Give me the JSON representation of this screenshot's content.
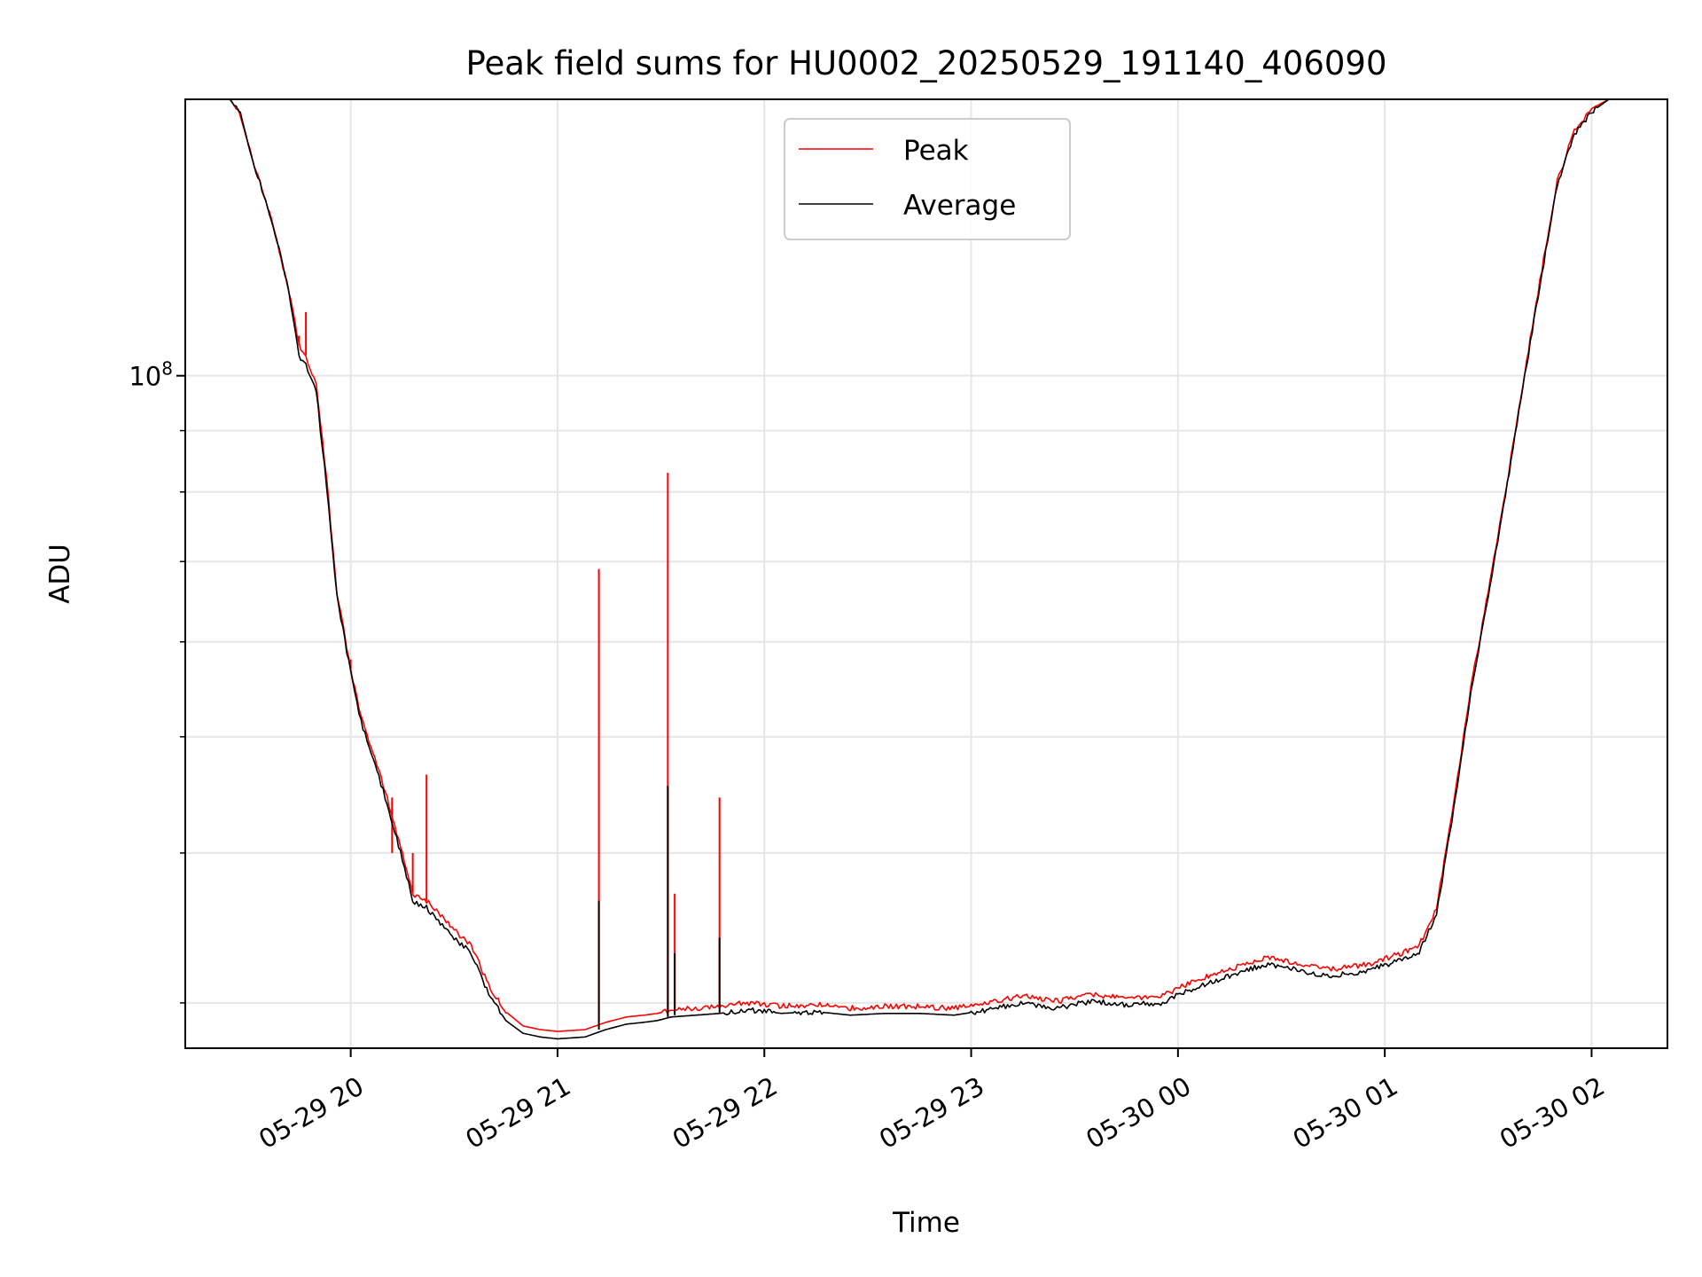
{
  "chart_data": {
    "type": "line",
    "title": "Peak field sums for HU0002_20250529_191140_406090",
    "xlabel": "Time",
    "ylabel": "ADU",
    "yscale": "log",
    "grid": true,
    "legend_position": "top-center",
    "xlim": [
      "2025-05-29 19:12",
      "2025-05-30 02:22"
    ],
    "ylim": [
      27500000,
      170000000
    ],
    "x_ticks": [
      {
        "value": "2025-05-29 20:00",
        "label": "05-29 20"
      },
      {
        "value": "2025-05-29 21:00",
        "label": "05-29 21"
      },
      {
        "value": "2025-05-29 22:00",
        "label": "05-29 22"
      },
      {
        "value": "2025-05-29 23:00",
        "label": "05-29 23"
      },
      {
        "value": "2025-05-30 00:00",
        "label": "05-30 00"
      },
      {
        "value": "2025-05-30 01:00",
        "label": "05-30 01"
      },
      {
        "value": "2025-05-30 02:00",
        "label": "05-30 02"
      }
    ],
    "y_ticks": [
      {
        "value": 100000000,
        "base": "10",
        "exp": "8"
      }
    ],
    "y_minor_ticks": [
      30000000,
      40000000,
      50000000,
      60000000,
      70000000,
      80000000,
      90000000
    ],
    "series": [
      {
        "name": "Peak",
        "color": "#ff0000",
        "x": [
          "2025-05-29 19:12",
          "2025-05-29 19:25",
          "2025-05-29 19:28",
          "2025-05-29 19:32",
          "2025-05-29 19:37",
          "2025-05-29 19:42",
          "2025-05-29 19:45",
          "2025-05-29 19:47",
          "2025-05-29 19:50",
          "2025-05-29 19:53",
          "2025-05-29 19:56",
          "2025-05-29 20:00",
          "2025-05-29 20:03",
          "2025-05-29 20:07",
          "2025-05-29 20:10",
          "2025-05-29 20:15",
          "2025-05-29 20:18",
          "2025-05-29 20:22",
          "2025-05-29 20:26",
          "2025-05-29 20:30",
          "2025-05-29 20:35",
          "2025-05-29 20:40",
          "2025-05-29 20:45",
          "2025-05-29 20:50",
          "2025-05-29 20:55",
          "2025-05-29 21:00",
          "2025-05-29 21:08",
          "2025-05-29 21:14",
          "2025-05-29 21:20",
          "2025-05-29 21:25",
          "2025-05-29 21:29",
          "2025-05-29 21:33",
          "2025-05-29 21:40",
          "2025-05-29 21:47",
          "2025-05-29 21:55",
          "2025-05-29 22:05",
          "2025-05-29 22:15",
          "2025-05-29 22:25",
          "2025-05-29 22:35",
          "2025-05-29 22:45",
          "2025-05-29 22:55",
          "2025-05-29 23:05",
          "2025-05-29 23:15",
          "2025-05-29 23:25",
          "2025-05-29 23:35",
          "2025-05-29 23:45",
          "2025-05-29 23:55",
          "2025-05-30 00:05",
          "2025-05-30 00:15",
          "2025-05-30 00:25",
          "2025-05-30 00:30",
          "2025-05-30 00:37",
          "2025-05-30 00:45",
          "2025-05-30 00:55",
          "2025-05-30 01:05",
          "2025-05-30 01:10",
          "2025-05-30 01:15",
          "2025-05-30 01:20",
          "2025-05-30 01:25",
          "2025-05-30 01:30",
          "2025-05-30 01:35",
          "2025-05-30 01:40",
          "2025-05-30 01:45",
          "2025-05-30 01:50",
          "2025-05-30 01:55",
          "2025-05-30 02:00",
          "2025-05-30 02:05",
          "2025-05-30 02:10",
          "2025-05-30 02:22"
        ],
        "y": [
          170000000,
          170000000,
          165000000,
          150000000,
          135000000,
          118000000,
          106000000,
          104000000,
          98000000,
          82000000,
          66000000,
          57000000,
          52000000,
          48000000,
          45000000,
          40000000,
          37000000,
          36500000,
          35500000,
          34500000,
          33500000,
          31000000,
          29500000,
          28700000,
          28500000,
          28400000,
          28500000,
          28900000,
          29200000,
          29300000,
          29400000,
          29600000,
          29700000,
          29800000,
          30000000,
          29800000,
          29900000,
          29700000,
          29800000,
          29800000,
          29700000,
          30000000,
          30400000,
          30100000,
          30500000,
          30300000,
          30400000,
          31300000,
          32000000,
          32700000,
          32600000,
          32200000,
          32000000,
          32300000,
          33000000,
          33500000,
          36000000,
          44000000,
          55000000,
          66000000,
          80000000,
          98000000,
          120000000,
          145000000,
          160000000,
          167000000,
          170000000,
          170000000,
          170000000
        ],
        "spikes": [
          {
            "x": "2025-05-29 19:45",
            "y": 108000000
          },
          {
            "x": "2025-05-29 19:47",
            "y": 113000000
          },
          {
            "x": "2025-05-29 20:00",
            "y": 58000000
          },
          {
            "x": "2025-05-29 20:12",
            "y": 44500000
          },
          {
            "x": "2025-05-29 20:18",
            "y": 40000000
          },
          {
            "x": "2025-05-29 20:22",
            "y": 46500000
          },
          {
            "x": "2025-05-29 21:12",
            "y": 69000000
          },
          {
            "x": "2025-05-29 21:32",
            "y": 83000000
          },
          {
            "x": "2025-05-29 21:34",
            "y": 37000000
          },
          {
            "x": "2025-05-29 21:47",
            "y": 44500000
          }
        ]
      },
      {
        "name": "Average",
        "color": "#000000",
        "x": [
          "2025-05-29 19:12",
          "2025-05-29 19:25",
          "2025-05-29 19:28",
          "2025-05-29 19:32",
          "2025-05-29 19:37",
          "2025-05-29 19:42",
          "2025-05-29 19:45",
          "2025-05-29 19:47",
          "2025-05-29 19:50",
          "2025-05-29 19:53",
          "2025-05-29 19:56",
          "2025-05-29 20:00",
          "2025-05-29 20:03",
          "2025-05-29 20:07",
          "2025-05-29 20:10",
          "2025-05-29 20:15",
          "2025-05-29 20:18",
          "2025-05-29 20:22",
          "2025-05-29 20:26",
          "2025-05-29 20:30",
          "2025-05-29 20:35",
          "2025-05-29 20:40",
          "2025-05-29 20:45",
          "2025-05-29 20:50",
          "2025-05-29 20:55",
          "2025-05-29 21:00",
          "2025-05-29 21:08",
          "2025-05-29 21:14",
          "2025-05-29 21:20",
          "2025-05-29 21:25",
          "2025-05-29 21:29",
          "2025-05-29 21:33",
          "2025-05-29 21:40",
          "2025-05-29 21:47",
          "2025-05-29 21:55",
          "2025-05-29 22:05",
          "2025-05-29 22:15",
          "2025-05-29 22:25",
          "2025-05-29 22:35",
          "2025-05-29 22:45",
          "2025-05-29 22:55",
          "2025-05-29 23:05",
          "2025-05-29 23:15",
          "2025-05-29 23:25",
          "2025-05-29 23:35",
          "2025-05-29 23:45",
          "2025-05-29 23:55",
          "2025-05-30 00:05",
          "2025-05-30 00:15",
          "2025-05-30 00:25",
          "2025-05-30 00:30",
          "2025-05-30 00:37",
          "2025-05-30 00:45",
          "2025-05-30 00:55",
          "2025-05-30 01:05",
          "2025-05-30 01:10",
          "2025-05-30 01:15",
          "2025-05-30 01:20",
          "2025-05-30 01:25",
          "2025-05-30 01:30",
          "2025-05-30 01:35",
          "2025-05-30 01:40",
          "2025-05-30 01:45",
          "2025-05-30 01:50",
          "2025-05-30 01:55",
          "2025-05-30 02:00",
          "2025-05-30 02:05",
          "2025-05-30 02:10",
          "2025-05-30 02:22"
        ],
        "y": [
          170000000,
          170000000,
          165000000,
          150000000,
          135000000,
          118000000,
          104000000,
          102000000,
          97000000,
          81000000,
          65500000,
          56500000,
          51500000,
          47500000,
          44500000,
          39500000,
          36500000,
          36000000,
          35000000,
          34000000,
          33000000,
          30500000,
          29000000,
          28300000,
          28100000,
          28000000,
          28100000,
          28500000,
          28800000,
          28900000,
          29000000,
          29200000,
          29300000,
          29400000,
          29600000,
          29400000,
          29500000,
          29300000,
          29400000,
          29400000,
          29300000,
          29600000,
          30000000,
          29700000,
          30100000,
          29900000,
          30000000,
          30900000,
          31600000,
          32300000,
          32200000,
          31800000,
          31600000,
          31900000,
          32600000,
          33100000,
          35500000,
          43500000,
          54500000,
          65500000,
          79500000,
          97500000,
          119000000,
          144000000,
          159000000,
          166000000,
          170000000,
          170000000,
          170000000
        ],
        "spikes": [
          {
            "x": "2025-05-29 21:12",
            "y": 36500000
          },
          {
            "x": "2025-05-29 21:32",
            "y": 45500000
          },
          {
            "x": "2025-05-29 21:34",
            "y": 33000000
          },
          {
            "x": "2025-05-29 21:47",
            "y": 34000000
          }
        ]
      }
    ]
  }
}
